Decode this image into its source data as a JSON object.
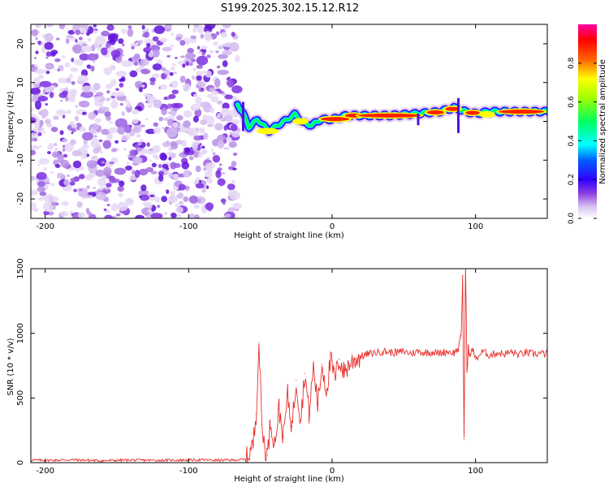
{
  "chart_data": [
    {
      "type": "heatmap",
      "title": "S199.2025.302.15.12.R12",
      "xlabel": "Height of straight line (km)",
      "ylabel": "Frequency (Hz)",
      "xlim": [
        -210,
        150
      ],
      "ylim": [
        -25,
        25
      ],
      "x_ticks": [
        -200,
        -100,
        0,
        100
      ],
      "y_ticks": [
        -20,
        -10,
        0,
        10,
        20
      ],
      "x_tick_labels": [
        "-200",
        "-100",
        "0",
        "100"
      ],
      "y_tick_labels": [
        "-20",
        "-10",
        "0",
        "10",
        "20"
      ],
      "noise_region_x": [
        -210,
        -66
      ],
      "ridge": [
        {
          "x": -66,
          "y": 4.5
        },
        {
          "x": -62,
          "y": 2.0
        },
        {
          "x": -58,
          "y": -1.5
        },
        {
          "x": -52,
          "y": 0.5
        },
        {
          "x": -44,
          "y": -2.5
        },
        {
          "x": -38,
          "y": -1.0
        },
        {
          "x": -32,
          "y": 0.3
        },
        {
          "x": -26,
          "y": 1.8
        },
        {
          "x": -20,
          "y": -0.5
        },
        {
          "x": -14,
          "y": -1.0
        },
        {
          "x": -8,
          "y": 0.5
        },
        {
          "x": 0,
          "y": 0.5
        },
        {
          "x": 10,
          "y": 1.5
        },
        {
          "x": 25,
          "y": 1.5
        },
        {
          "x": 40,
          "y": 1.5
        },
        {
          "x": 60,
          "y": 2.0
        },
        {
          "x": 75,
          "y": 2.5
        },
        {
          "x": 85,
          "y": 3.5
        },
        {
          "x": 93,
          "y": 2.5
        },
        {
          "x": 100,
          "y": 2.0
        },
        {
          "x": 110,
          "y": 2.5
        },
        {
          "x": 125,
          "y": 2.5
        },
        {
          "x": 150,
          "y": 2.5
        }
      ],
      "colorbar": {
        "label": "Normalized spectral amplitude",
        "range": [
          0.0,
          1.0
        ],
        "ticks": [
          0.0,
          0.2,
          0.4,
          0.6,
          0.8
        ],
        "tick_labels": [
          "0.0",
          "0.2",
          "0.4",
          "0.6",
          "0.8"
        ],
        "colors": [
          "#ffffff",
          "#b98be0",
          "#5000d0",
          "#0000ff",
          "#00ffff",
          "#00ff00",
          "#ffff00",
          "#ff8000",
          "#ff0000",
          "#ff00a0"
        ]
      }
    },
    {
      "type": "line",
      "xlabel": "Height of straight line (km)",
      "ylabel": "SNR (10 * v/v)",
      "xlim": [
        -210,
        150
      ],
      "ylim": [
        0,
        1500
      ],
      "x_ticks": [
        -200,
        -100,
        0,
        100
      ],
      "y_ticks": [
        0,
        500,
        1000,
        1500
      ],
      "x_tick_labels": [
        "-200",
        "-100",
        "0",
        "100"
      ],
      "y_tick_labels": [
        "0",
        "500",
        "1000",
        "1500"
      ],
      "series": [
        {
          "name": "SNR",
          "color": "#e8302c",
          "x": [
            -210,
            -200,
            -180,
            -160,
            -140,
            -120,
            -100,
            -90,
            -80,
            -70,
            -60,
            -55,
            -53,
            -51,
            -49,
            -47,
            -45,
            -43,
            -40,
            -37,
            -34,
            -31,
            -28,
            -25,
            -22,
            -19,
            -16,
            -13,
            -10,
            -7,
            -4,
            -1,
            2,
            5,
            8,
            12,
            16,
            20,
            25,
            30,
            35,
            40,
            45,
            50,
            55,
            60,
            65,
            70,
            75,
            80,
            85,
            88,
            90,
            91,
            92,
            93,
            94,
            95,
            96,
            98,
            100,
            105,
            110,
            115,
            120,
            125,
            130,
            135,
            140,
            145,
            150
          ],
          "y": [
            20,
            18,
            22,
            15,
            20,
            18,
            20,
            22,
            18,
            20,
            25,
            140,
            380,
            930,
            300,
            120,
            60,
            320,
            150,
            420,
            200,
            520,
            280,
            640,
            330,
            690,
            380,
            740,
            450,
            760,
            560,
            790,
            640,
            800,
            700,
            760,
            800,
            820,
            840,
            850,
            860,
            855,
            850,
            860,
            845,
            860,
            850,
            855,
            845,
            860,
            850,
            880,
            980,
            1450,
            180,
            1550,
            700,
            900,
            820,
            880,
            800,
            860,
            830,
            850,
            840,
            855,
            835,
            850,
            840,
            845,
            840
          ]
        }
      ]
    }
  ]
}
